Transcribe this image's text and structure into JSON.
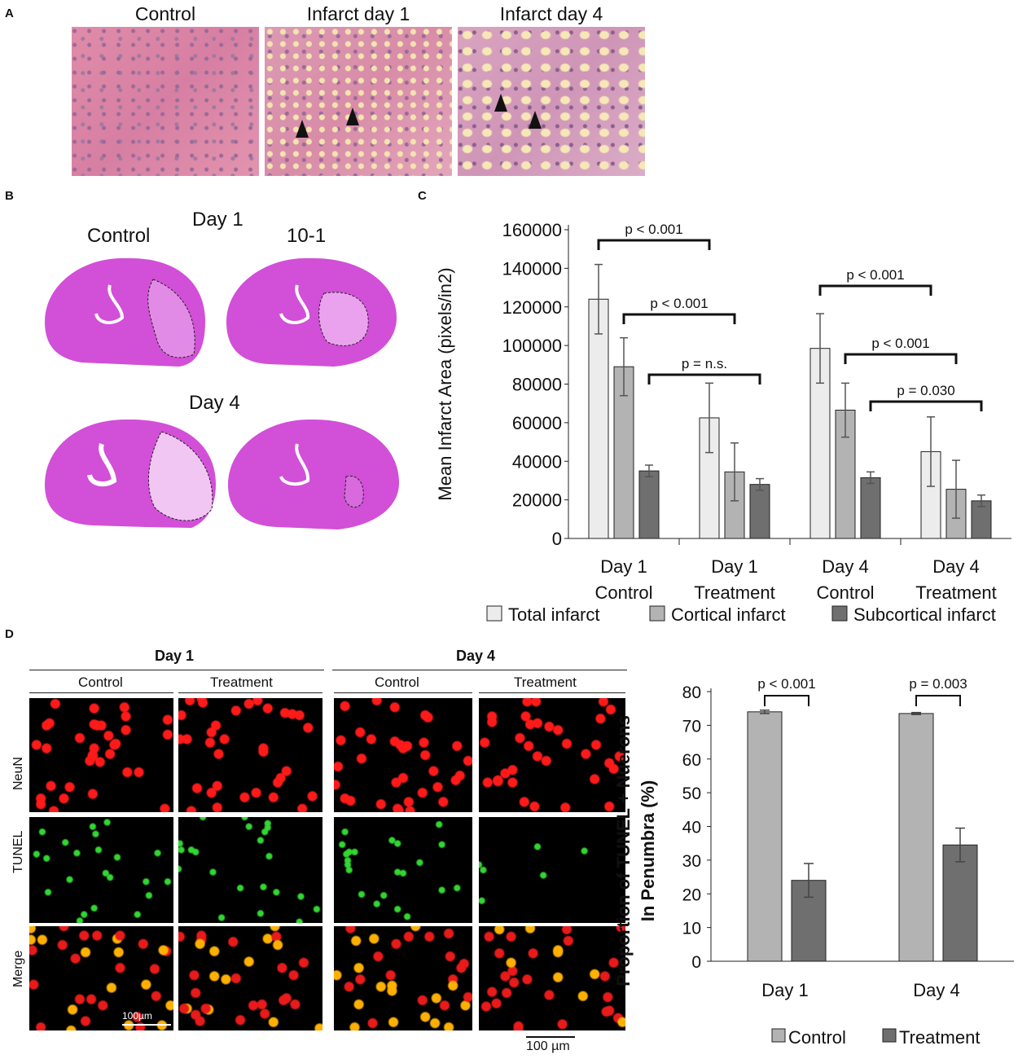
{
  "panel_a": {
    "letter": "A",
    "tiles": [
      {
        "label": "Control"
      },
      {
        "label": "Infarct day 1"
      },
      {
        "label": "Infarct day 4"
      }
    ]
  },
  "panel_b": {
    "letter": "B",
    "day1_title": "Day 1",
    "day4_title": "Day 4",
    "col_control": "Control",
    "col_treat": "10-1"
  },
  "panel_c": {
    "letter": "C"
  },
  "panel_d": {
    "letter": "D",
    "day1": "Day 1",
    "day4": "Day 4",
    "control": "Control",
    "treatment": "Treatment",
    "rows": [
      "NeuN",
      "TUNEL",
      "Merge"
    ],
    "scalebar_inner": "100µm",
    "scalebar_outer": "100 µm"
  },
  "chart_data": [
    {
      "type": "bar",
      "ylabel": "Mean Infarct Area (pixels/in2)",
      "ylim": [
        0,
        160000
      ],
      "yticks": [
        0,
        20000,
        40000,
        60000,
        80000,
        100000,
        120000,
        140000,
        160000
      ],
      "categories": [
        "Day 1\nControl",
        "Day 1\nTreatment",
        "Day 4\nControl",
        "Day 4\nTreatment"
      ],
      "series": [
        {
          "name": "Total infarct",
          "values": [
            124000,
            62500,
            98500,
            45000
          ],
          "errors": [
            18000,
            18000,
            18000,
            18000
          ],
          "color": "#ececec"
        },
        {
          "name": "Cortical infarct",
          "values": [
            89000,
            34500,
            66500,
            25500
          ],
          "errors": [
            15000,
            15000,
            14000,
            15000
          ],
          "color": "#b3b3b3"
        },
        {
          "name": "Subcortical infarct",
          "values": [
            35000,
            28000,
            31500,
            19500
          ],
          "errors": [
            3000,
            3000,
            3000,
            3000
          ],
          "color": "#6f6f6f"
        }
      ],
      "annotations": [
        "p < 0.001",
        "p < 0.001",
        "p = n.s.",
        "p < 0.001",
        "p < 0.001",
        "p = 0.030"
      ],
      "legend": "bottom"
    },
    {
      "type": "bar",
      "ylabel": "Proportion of TUNEL + Nuerons In Penumbra (%)",
      "ylim": [
        0,
        80
      ],
      "yticks": [
        0,
        10,
        20,
        30,
        40,
        50,
        60,
        70,
        80
      ],
      "categories": [
        "Day 1",
        "Day 4"
      ],
      "series": [
        {
          "name": "Control",
          "values": [
            74,
            73.5
          ],
          "errors": [
            0.5,
            0.3
          ],
          "color": "#b3b3b3"
        },
        {
          "name": "Treatment",
          "values": [
            24,
            34.5
          ],
          "errors": [
            5,
            5
          ],
          "color": "#6f6f6f"
        }
      ],
      "annotations": [
        "p < 0.001",
        "p = 0.003"
      ],
      "legend": "bottom"
    }
  ]
}
